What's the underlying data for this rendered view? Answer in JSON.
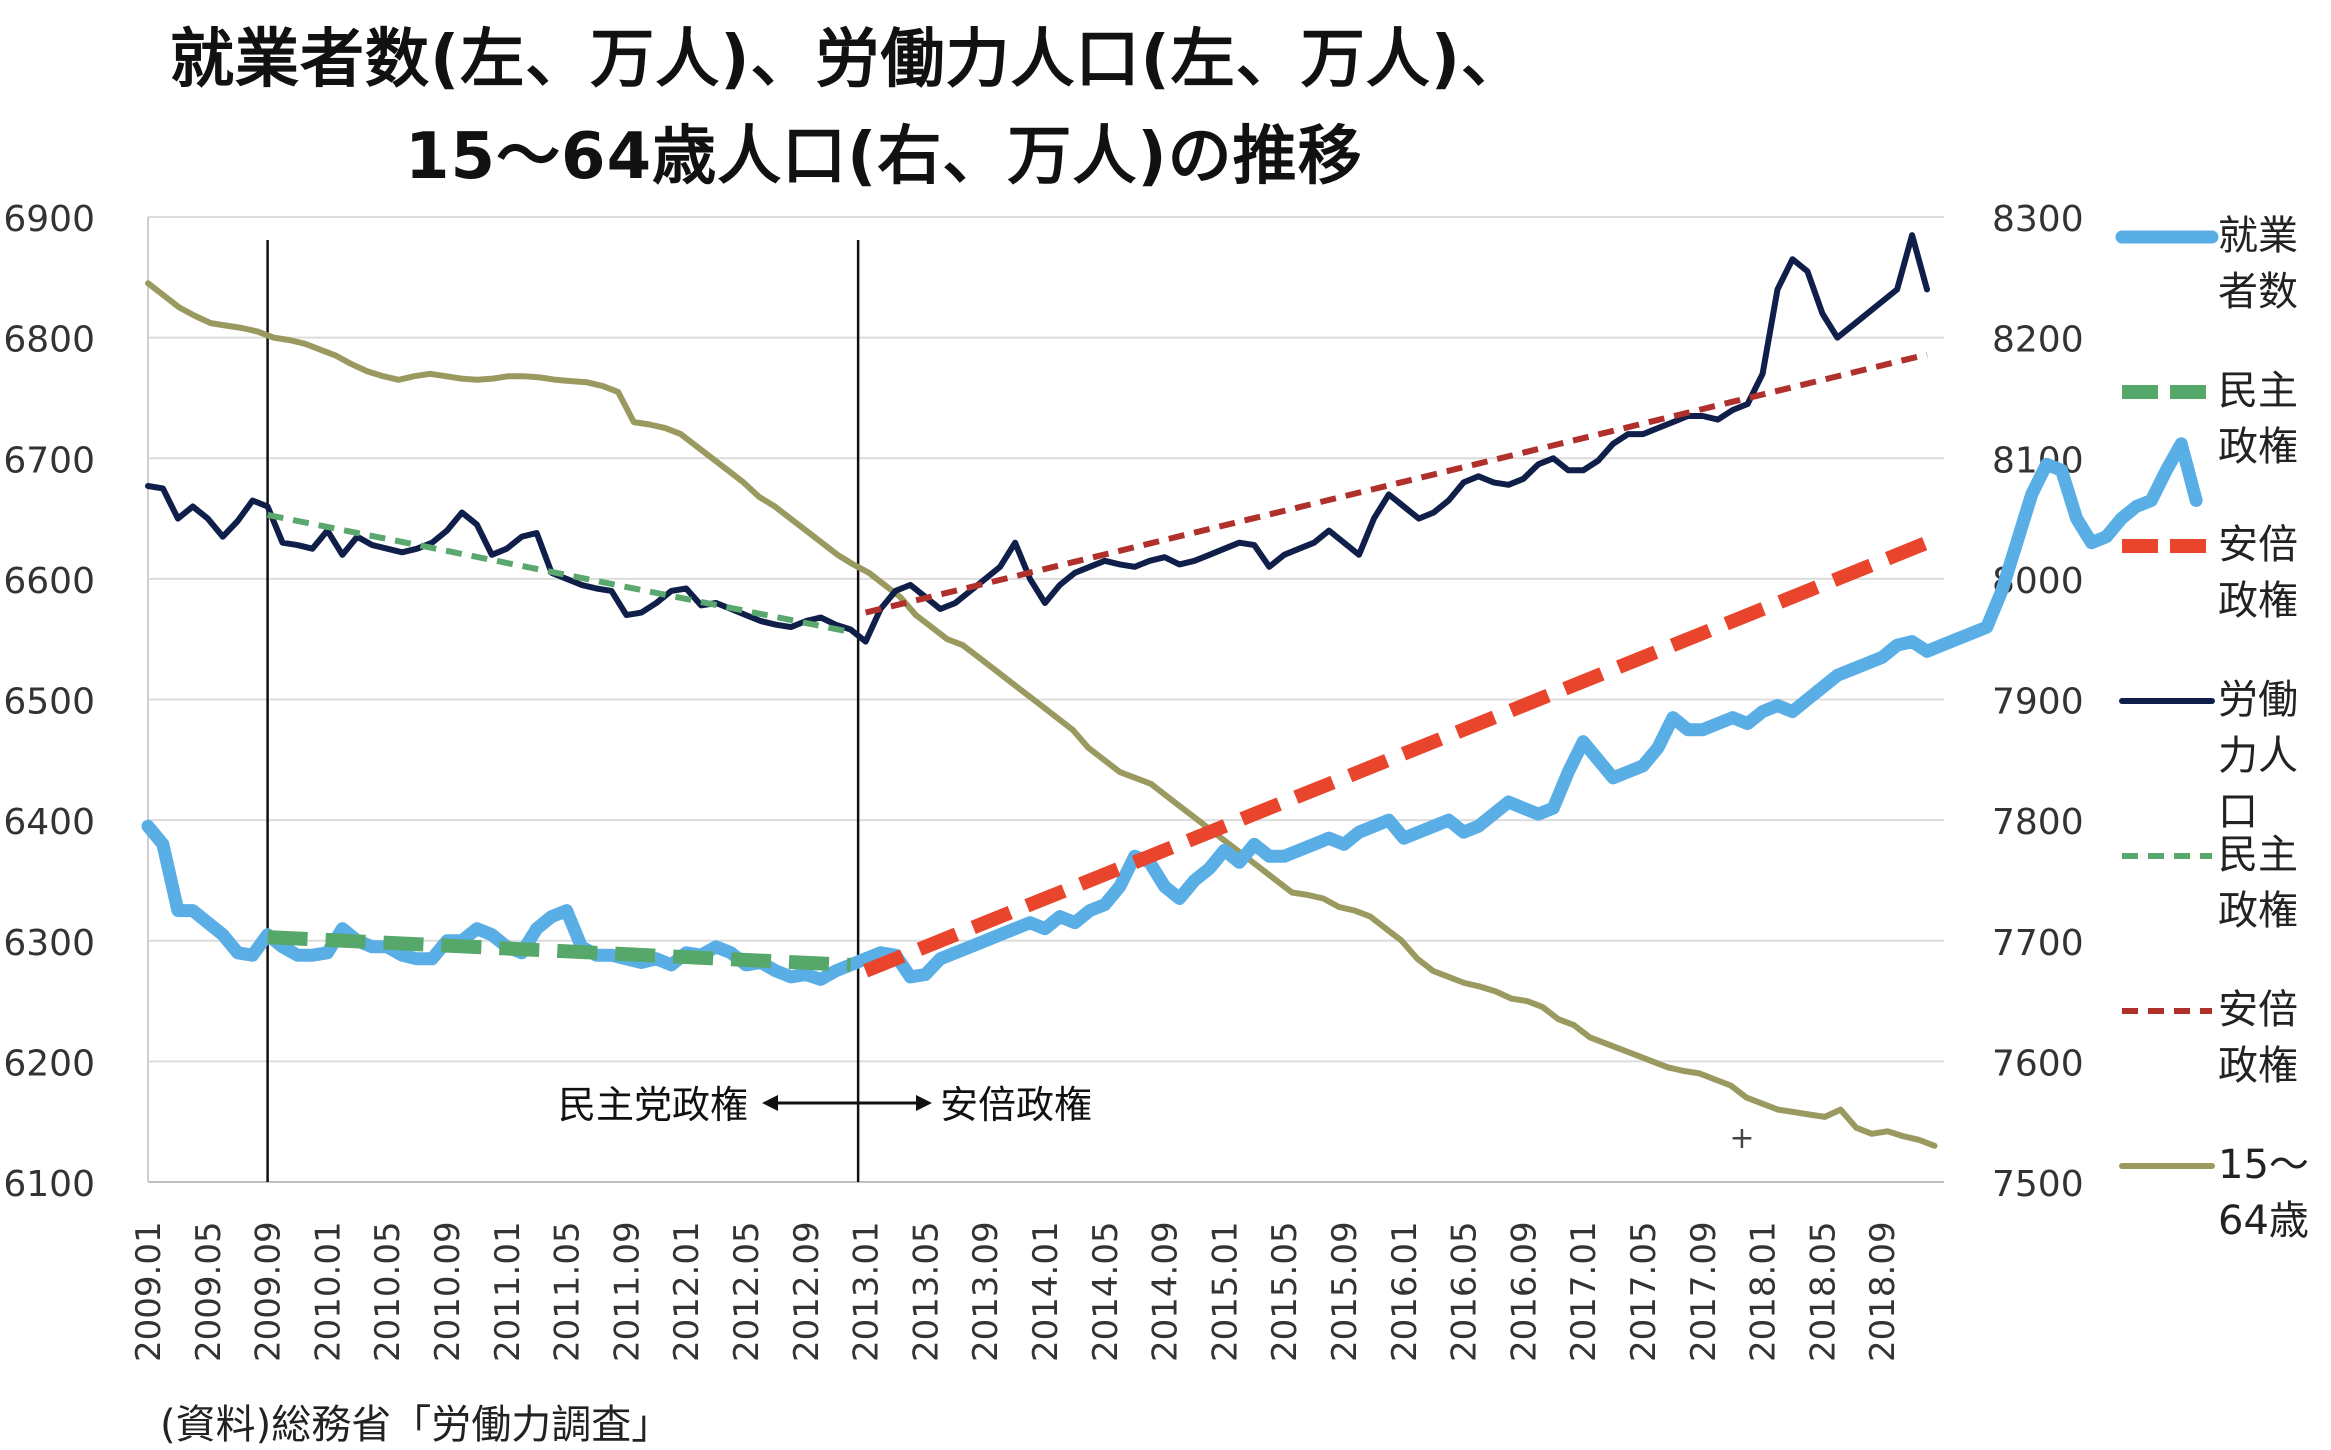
{
  "title_line1": "就業者数(左、万人)、労働力人口(左、万人)、",
  "title_line2": "15～64歳人口(右、万人)の推移",
  "source": "(資料)総務省「労働力調査」",
  "chart_data": {
    "type": "line",
    "title": "就業者数(左、万人)、労働力人口(左、万人)、15～64歳人口(右、万人)の推移",
    "x_labels": [
      "2009.01",
      "2009.05",
      "2009.09",
      "2010.01",
      "2010.05",
      "2010.09",
      "2011.01",
      "2011.05",
      "2011.09",
      "2012.01",
      "2012.05",
      "2012.09",
      "2013.01",
      "2013.05",
      "2013.09",
      "2014.01",
      "2014.05",
      "2014.09",
      "2015.01",
      "2015.05",
      "2015.09",
      "2016.01",
      "2016.05",
      "2016.09",
      "2017.01",
      "2017.05",
      "2017.09",
      "2018.01",
      "2018.05",
      "2018.09"
    ],
    "left_axis": {
      "min": 6100,
      "max": 6900,
      "ticks": [
        "6100",
        "6200",
        "6300",
        "6400",
        "6500",
        "6600",
        "6700",
        "6800",
        "6900"
      ]
    },
    "right_axis": {
      "min": 7500,
      "max": 8300,
      "ticks": [
        "7500",
        "7600",
        "7700",
        "7800",
        "7900",
        "8000",
        "8100",
        "8200",
        "8300"
      ]
    },
    "grid": true,
    "legend_position": "right",
    "annotations": {
      "left_label": "民主党政権",
      "right_label": "安倍政権",
      "marker": "+"
    },
    "series": [
      {
        "name": "就業者数",
        "axis": "left",
        "color": "#5aaee6",
        "style": "solid-thick",
        "legend_label": "就業\n者数",
        "values": [
          6395,
          6380,
          6325,
          6325,
          6315,
          6305,
          6290,
          6288,
          6305,
          6295,
          6288,
          6288,
          6290,
          6310,
          6300,
          6295,
          6295,
          6288,
          6285,
          6285,
          6300,
          6300,
          6310,
          6305,
          6295,
          6290,
          6310,
          6320,
          6325,
          6295,
          6288,
          6288,
          6285,
          6282,
          6285,
          6280,
          6290,
          6288,
          6295,
          6290,
          6280,
          6282,
          6275,
          6270,
          6272,
          6268,
          6275,
          6280,
          6285,
          6290,
          6288,
          6270,
          6272,
          6285,
          6290,
          6295,
          6300,
          6305,
          6310,
          6315,
          6310,
          6320,
          6315,
          6325,
          6330,
          6345,
          6370,
          6365,
          6345,
          6335,
          6350,
          6360,
          6375,
          6365,
          6380,
          6370,
          6370,
          6375,
          6380,
          6385,
          6380,
          6390,
          6395,
          6400,
          6385,
          6390,
          6395,
          6400,
          6390,
          6395,
          6405,
          6415,
          6410,
          6405,
          6410,
          6440,
          6465,
          6450,
          6435,
          6440,
          6445,
          6460,
          6485,
          6475,
          6475,
          6480,
          6485,
          6480,
          6490,
          6495,
          6490,
          6500,
          6510,
          6520,
          6525,
          6530,
          6535,
          6545,
          6548,
          6540,
          6545,
          6550,
          6555,
          6560,
          6590,
          6630,
          6670,
          6695,
          6690,
          6650,
          6630,
          6635,
          6650,
          6660,
          6665,
          6690,
          6712,
          6665
        ]
      },
      {
        "name": "民主政権",
        "axis": "left",
        "color": "#55a86a",
        "style": "dashed-thick",
        "legend_label": "民主\n政権",
        "x_start_index": 8,
        "x_end_index": 47,
        "start_value": 6303,
        "end_value": 6280
      },
      {
        "name": "安倍政権",
        "axis": "left",
        "color": "#e8452c",
        "style": "dashed-thick",
        "legend_label": "安倍\n政権",
        "x_start_index": 48,
        "x_end_index": 119,
        "start_value": 6275,
        "end_value": 6630
      },
      {
        "name": "労働力人口",
        "axis": "left",
        "color": "#0f1f4a",
        "style": "solid",
        "legend_label": "労働\n力人\n口",
        "values": [
          6677,
          6675,
          6650,
          6660,
          6650,
          6635,
          6648,
          6665,
          6660,
          6630,
          6628,
          6625,
          6640,
          6620,
          6635,
          6628,
          6625,
          6622,
          6625,
          6630,
          6640,
          6655,
          6645,
          6620,
          6625,
          6635,
          6638,
          6605,
          6600,
          6595,
          6592,
          6590,
          6570,
          6572,
          6580,
          6590,
          6592,
          6578,
          6580,
          6575,
          6570,
          6565,
          6562,
          6560,
          6565,
          6568,
          6562,
          6558,
          6548,
          6575,
          6590,
          6595,
          6585,
          6575,
          6580,
          6590,
          6600,
          6610,
          6630,
          6600,
          6580,
          6595,
          6605,
          6610,
          6615,
          6612,
          6610,
          6615,
          6618,
          6612,
          6615,
          6620,
          6625,
          6630,
          6628,
          6610,
          6620,
          6625,
          6630,
          6640,
          6630,
          6620,
          6650,
          6670,
          6660,
          6650,
          6655,
          6665,
          6680,
          6685,
          6680,
          6678,
          6683,
          6695,
          6700,
          6690,
          6690,
          6698,
          6712,
          6720,
          6720,
          6725,
          6730,
          6735,
          6735,
          6732,
          6740,
          6745,
          6770,
          6840,
          6865,
          6855,
          6820,
          6800,
          6810,
          6820,
          6830,
          6840,
          6885,
          6840
        ]
      },
      {
        "name": "民主政権",
        "axis": "left",
        "color": "#5aa86e",
        "style": "dashed",
        "legend_label": "民主\n政権",
        "x_start_index": 8,
        "x_end_index": 47,
        "start_value": 6653,
        "end_value": 6556
      },
      {
        "name": "安倍政権",
        "axis": "left",
        "color": "#b0312b",
        "style": "dashed",
        "legend_label": "安倍\n政権",
        "x_start_index": 48,
        "x_end_index": 119,
        "start_value": 6572,
        "end_value": 6786
      },
      {
        "name": "15～64歳",
        "axis": "right",
        "color": "#9a9a60",
        "style": "solid",
        "legend_label": "15～\n64歳",
        "values": [
          8245,
          8235,
          8225,
          8218,
          8212,
          8210,
          8208,
          8205,
          8200,
          8198,
          8195,
          8190,
          8185,
          8178,
          8172,
          8168,
          8165,
          8168,
          8170,
          8168,
          8166,
          8165,
          8166,
          8168,
          8168,
          8167,
          8165,
          8164,
          8163,
          8160,
          8155,
          8130,
          8128,
          8125,
          8120,
          8110,
          8100,
          8090,
          8080,
          8068,
          8060,
          8050,
          8040,
          8030,
          8020,
          8012,
          8005,
          7995,
          7985,
          7970,
          7960,
          7950,
          7945,
          7935,
          7925,
          7915,
          7905,
          7895,
          7885,
          7875,
          7860,
          7850,
          7840,
          7835,
          7830,
          7820,
          7810,
          7800,
          7790,
          7780,
          7770,
          7760,
          7750,
          7740,
          7738,
          7735,
          7728,
          7725,
          7720,
          7710,
          7700,
          7685,
          7675,
          7670,
          7665,
          7662,
          7658,
          7652,
          7650,
          7645,
          7635,
          7630,
          7620,
          7615,
          7610,
          7605,
          7600,
          7595,
          7592,
          7590,
          7585,
          7580,
          7570,
          7565,
          7560,
          7558,
          7556,
          7554,
          7560,
          7545,
          7540,
          7542,
          7538,
          7535,
          7530
        ]
      }
    ]
  }
}
